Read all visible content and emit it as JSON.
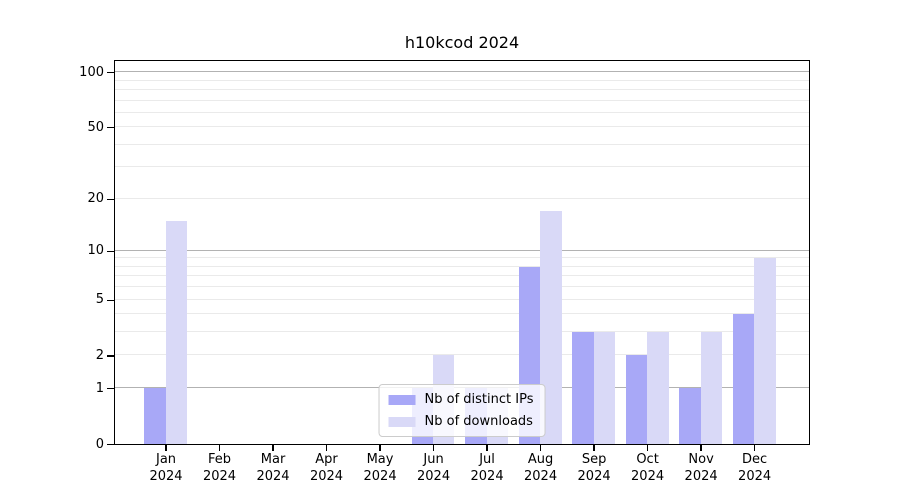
{
  "chart_data": {
    "type": "bar",
    "title": "h10kcod 2024",
    "categories": [
      "Jan",
      "Feb",
      "Mar",
      "Apr",
      "May",
      "Jun",
      "Jul",
      "Aug",
      "Sep",
      "Oct",
      "Nov",
      "Dec"
    ],
    "category_year": "2024",
    "series": [
      {
        "name": "Nb of distinct IPs",
        "color": "#a8a8f7",
        "values": [
          1,
          0,
          0,
          0,
          0,
          1,
          1,
          8,
          3,
          2,
          1,
          4
        ]
      },
      {
        "name": "Nb of downloads",
        "color": "#d9d9f7",
        "values": [
          15,
          0,
          0,
          0,
          0,
          2,
          1,
          17,
          3,
          3,
          3,
          9
        ]
      }
    ],
    "y_axis": {
      "scale": "log10(1+v)",
      "top_value": 115,
      "bottom_value": 0,
      "tick_values": [
        100,
        50,
        20,
        10,
        5,
        2,
        1,
        0
      ],
      "major_gridlines": [
        1,
        10,
        100
      ],
      "minor_gridlines": [
        2,
        3,
        4,
        5,
        6,
        7,
        8,
        9,
        20,
        30,
        40,
        50,
        60,
        70,
        80,
        90
      ]
    },
    "x_layout": {
      "first_center_frac": 0.0728,
      "step_frac": 0.0771,
      "bar_width_frac": 0.0309
    },
    "legend": {
      "position": "lower center"
    },
    "grid": "on",
    "colors": {
      "major_grid": "#b2b2b2",
      "minor_grid": "#eaeaea",
      "axis": "#000000",
      "background": "#ffffff"
    }
  }
}
